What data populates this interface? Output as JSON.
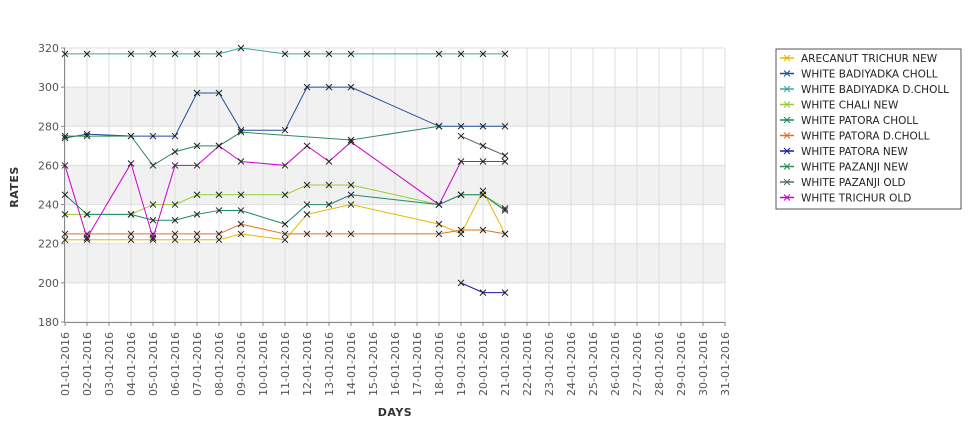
{
  "chart_data": {
    "type": "line",
    "xlabel": "DAYS",
    "ylabel": "RATES",
    "ylim": [
      180,
      320
    ],
    "yticks": [
      180,
      200,
      220,
      240,
      260,
      280,
      300,
      320
    ],
    "grid": "horizontal alternating bands, vertical lines per day",
    "legend_position": "right",
    "categories": [
      "01-01-2016",
      "02-01-2016",
      "03-01-2016",
      "04-01-2016",
      "05-01-2016",
      "06-01-2016",
      "07-01-2016",
      "08-01-2016",
      "09-01-2016",
      "10-01-2016",
      "11-01-2016",
      "12-01-2016",
      "13-01-2016",
      "14-01-2016",
      "15-01-2016",
      "16-01-2016",
      "17-01-2016",
      "18-01-2016",
      "19-01-2016",
      "20-01-2016",
      "21-01-2016",
      "22-01-2016",
      "23-01-2016",
      "24-01-2016",
      "25-01-2016",
      "26-01-2016",
      "27-01-2016",
      "28-01-2016",
      "29-01-2016",
      "30-01-2016",
      "31-01-2016"
    ],
    "series": [
      {
        "name": "ARECANUT TRICHUR NEW",
        "color": "#e6b800",
        "values": [
          222,
          222,
          null,
          222,
          222,
          222,
          222,
          222,
          225,
          null,
          222,
          235,
          null,
          240,
          null,
          null,
          null,
          230,
          225,
          247,
          225,
          null,
          null,
          null,
          null,
          null,
          null,
          null,
          null,
          null,
          null
        ]
      },
      {
        "name": "WHITE BADIYADKA CHOLL",
        "color": "#1f4e9c",
        "values": [
          274,
          276,
          null,
          275,
          275,
          275,
          297,
          297,
          278,
          null,
          278,
          300,
          300,
          300,
          null,
          null,
          null,
          280,
          280,
          280,
          280,
          null,
          null,
          null,
          null,
          null,
          null,
          null,
          null,
          null,
          null
        ]
      },
      {
        "name": "WHITE BADIYADKA D.CHOLL",
        "color": "#3aa6a0",
        "values": [
          317,
          317,
          null,
          317,
          317,
          317,
          317,
          317,
          320,
          null,
          317,
          317,
          317,
          317,
          null,
          null,
          null,
          317,
          317,
          317,
          317,
          null,
          null,
          null,
          null,
          null,
          null,
          null,
          null,
          null,
          null
        ]
      },
      {
        "name": "WHITE CHALI NEW",
        "color": "#99cc33",
        "values": [
          235,
          235,
          null,
          235,
          240,
          240,
          245,
          245,
          245,
          null,
          245,
          250,
          250,
          250,
          null,
          null,
          null,
          240,
          245,
          245,
          238,
          null,
          null,
          null,
          null,
          null,
          null,
          null,
          null,
          null,
          null
        ]
      },
      {
        "name": "WHITE PATORA CHOLL",
        "color": "#1a8a6a",
        "values": [
          245,
          235,
          null,
          235,
          232,
          232,
          235,
          237,
          237,
          null,
          230,
          240,
          240,
          245,
          null,
          null,
          null,
          240,
          245,
          245,
          237,
          null,
          null,
          null,
          null,
          null,
          null,
          null,
          null,
          null,
          null
        ]
      },
      {
        "name": "WHITE PATORA D.CHOLL",
        "color": "#e07020",
        "values": [
          225,
          225,
          null,
          225,
          225,
          225,
          225,
          225,
          230,
          null,
          225,
          225,
          225,
          225,
          null,
          null,
          null,
          225,
          227,
          227,
          225,
          null,
          null,
          null,
          null,
          null,
          null,
          null,
          null,
          null,
          null
        ]
      },
      {
        "name": "WHITE PATORA NEW",
        "color": "#1a1aa0",
        "values": [
          null,
          null,
          null,
          null,
          null,
          null,
          null,
          null,
          null,
          null,
          null,
          null,
          null,
          null,
          null,
          null,
          null,
          null,
          200,
          195,
          195,
          null,
          null,
          null,
          null,
          null,
          null,
          null,
          null,
          null,
          null
        ]
      },
      {
        "name": "WHITE PAZANJI NEW",
        "color": "#2e8b57",
        "values": [
          275,
          275,
          null,
          275,
          260,
          267,
          270,
          270,
          277,
          null,
          null,
          null,
          null,
          273,
          null,
          null,
          null,
          280,
          null,
          null,
          null,
          null,
          null,
          null,
          null,
          null,
          null,
          null,
          null,
          null,
          null
        ]
      },
      {
        "name": "WHITE PAZANJI OLD",
        "color": "#556b6b",
        "values": [
          null,
          null,
          null,
          null,
          null,
          null,
          null,
          null,
          null,
          null,
          null,
          null,
          null,
          null,
          null,
          null,
          null,
          null,
          275,
          270,
          265,
          null,
          null,
          null,
          null,
          null,
          null,
          null,
          null,
          null,
          null
        ]
      },
      {
        "name": "WHITE TRICHUR OLD",
        "color": "#cc00cc",
        "values": [
          260,
          223,
          null,
          261,
          223,
          260,
          260,
          270,
          262,
          null,
          260,
          270,
          262,
          272,
          null,
          null,
          null,
          240,
          262,
          262,
          262,
          null,
          null,
          null,
          null,
          null,
          null,
          null,
          null,
          null,
          null
        ]
      }
    ]
  }
}
